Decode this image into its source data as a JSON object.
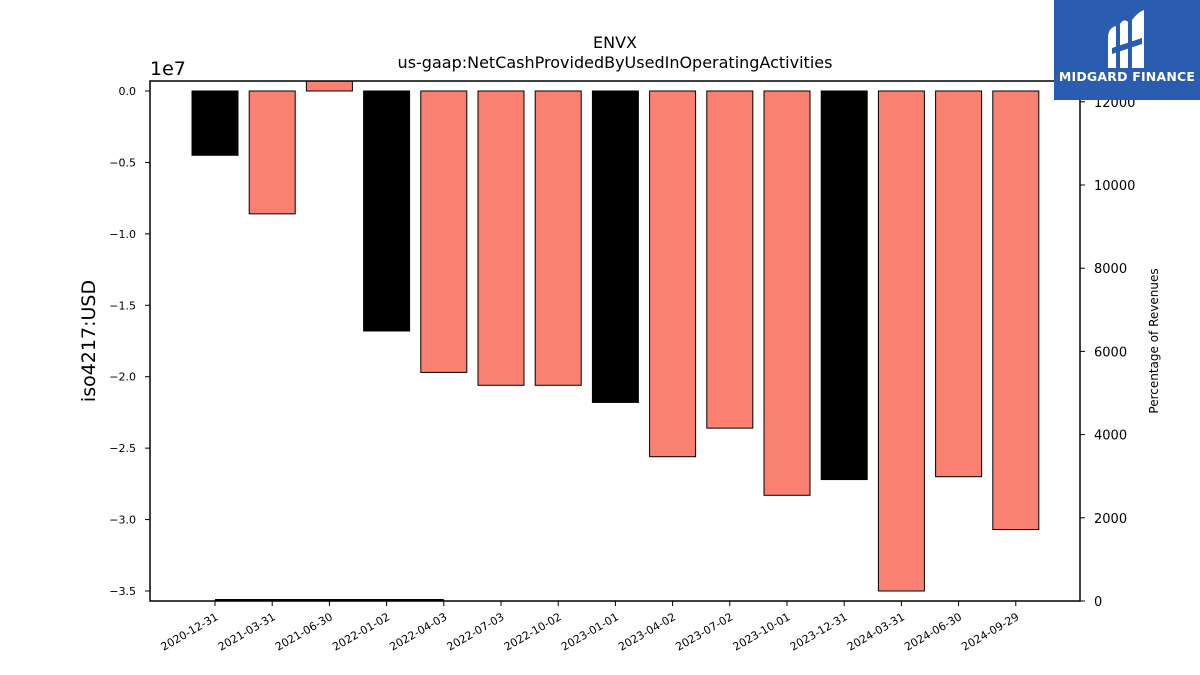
{
  "brand": {
    "name": "MIDGARD FINANCE",
    "background": "#2a5db0"
  },
  "chart_data": {
    "type": "bar",
    "title": "ENVX",
    "subtitle": "us-gaap:NetCashProvidedByUsedInOperatingActivities",
    "ylabel": "iso4217:USD",
    "y2label": "Percentage of Revenues",
    "y_offset_label": "1e7",
    "ylim": [
      -3.57,
      0.07
    ],
    "y2lim": [
      0,
      12500
    ],
    "yticks": [
      "0.0",
      "−0.5",
      "−1.0",
      "−1.5",
      "−2.0",
      "−2.5",
      "−3.0",
      "−3.5"
    ],
    "y2ticks": [
      "0",
      "2000",
      "4000",
      "6000",
      "8000",
      "10000",
      "12000"
    ],
    "categories": [
      "2020-12-31",
      "2021-03-31",
      "2021-06-30",
      "2022-01-02",
      "2022-04-03",
      "2022-07-03",
      "2022-10-02",
      "2023-01-01",
      "2023-04-02",
      "2023-07-02",
      "2023-10-01",
      "2023-12-31",
      "2024-03-31",
      "2024-06-30",
      "2024-09-29"
    ],
    "values": [
      -0.45,
      -0.86,
      0.07,
      -1.68,
      -1.97,
      -2.06,
      -2.06,
      -2.18,
      -2.56,
      -2.36,
      -2.83,
      -2.72,
      -3.5,
      -2.7,
      -3.07
    ],
    "bar_colors": [
      "#000000",
      "#fa8072",
      "#fa8072",
      "#000000",
      "#fa8072",
      "#fa8072",
      "#fa8072",
      "#000000",
      "#fa8072",
      "#fa8072",
      "#fa8072",
      "#000000",
      "#fa8072",
      "#fa8072",
      "#fa8072"
    ],
    "revenue_pct_line": {
      "x_range": [
        "2020-12-31",
        "2022-04-03"
      ],
      "y2": 0
    },
    "grid": false
  }
}
